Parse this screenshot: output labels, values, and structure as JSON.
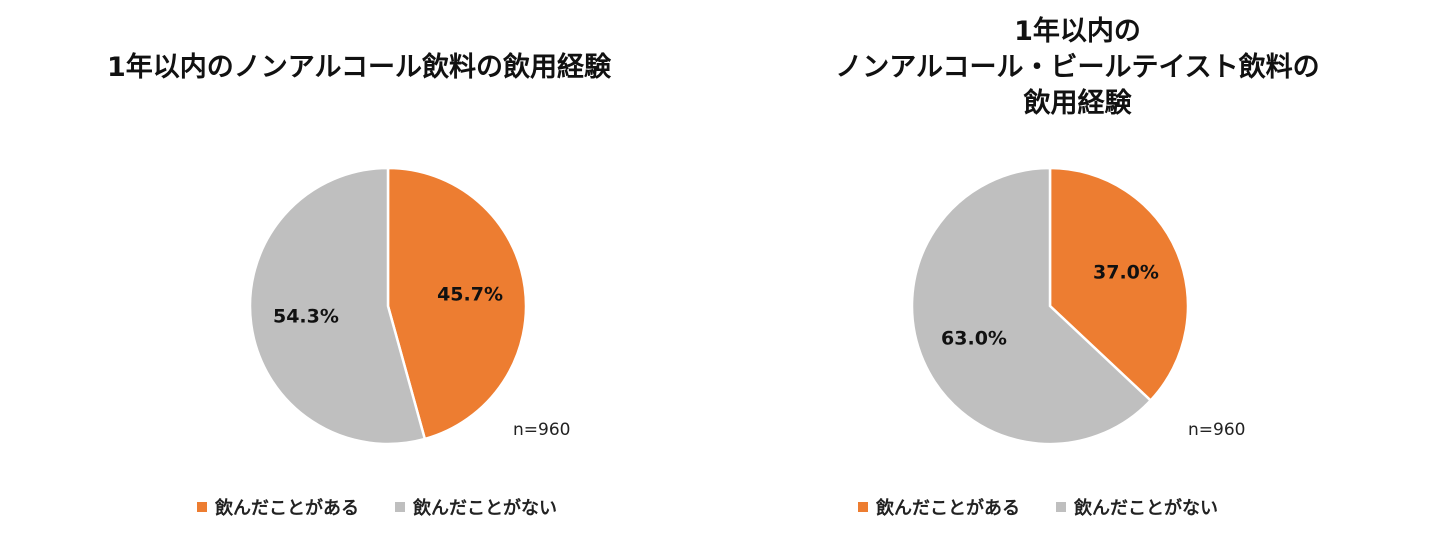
{
  "colors": {
    "drank": "#ED7D31",
    "not_drank": "#BFBFBF"
  },
  "legend": [
    "飲んだことがある",
    "飲んだことがない"
  ],
  "chart_data": [
    {
      "type": "pie",
      "title_lines": [
        "1年以内のノンアルコール飲料の飲用経験"
      ],
      "categories": [
        "飲んだことがある",
        "飲んだことがない"
      ],
      "values": [
        45.7,
        54.3
      ],
      "value_labels": [
        "45.7%",
        "54.3%"
      ],
      "note": "n=960",
      "legend_position": "bottom"
    },
    {
      "type": "pie",
      "title_lines": [
        "1年以内の",
        "ノンアルコール・ビールテイスト飲料の",
        "飲用経験"
      ],
      "categories": [
        "飲んだことがある",
        "飲んだことがない"
      ],
      "values": [
        37.0,
        63.0
      ],
      "value_labels": [
        "37.0%",
        "63.0%"
      ],
      "note": "n=960",
      "legend_position": "bottom"
    }
  ]
}
